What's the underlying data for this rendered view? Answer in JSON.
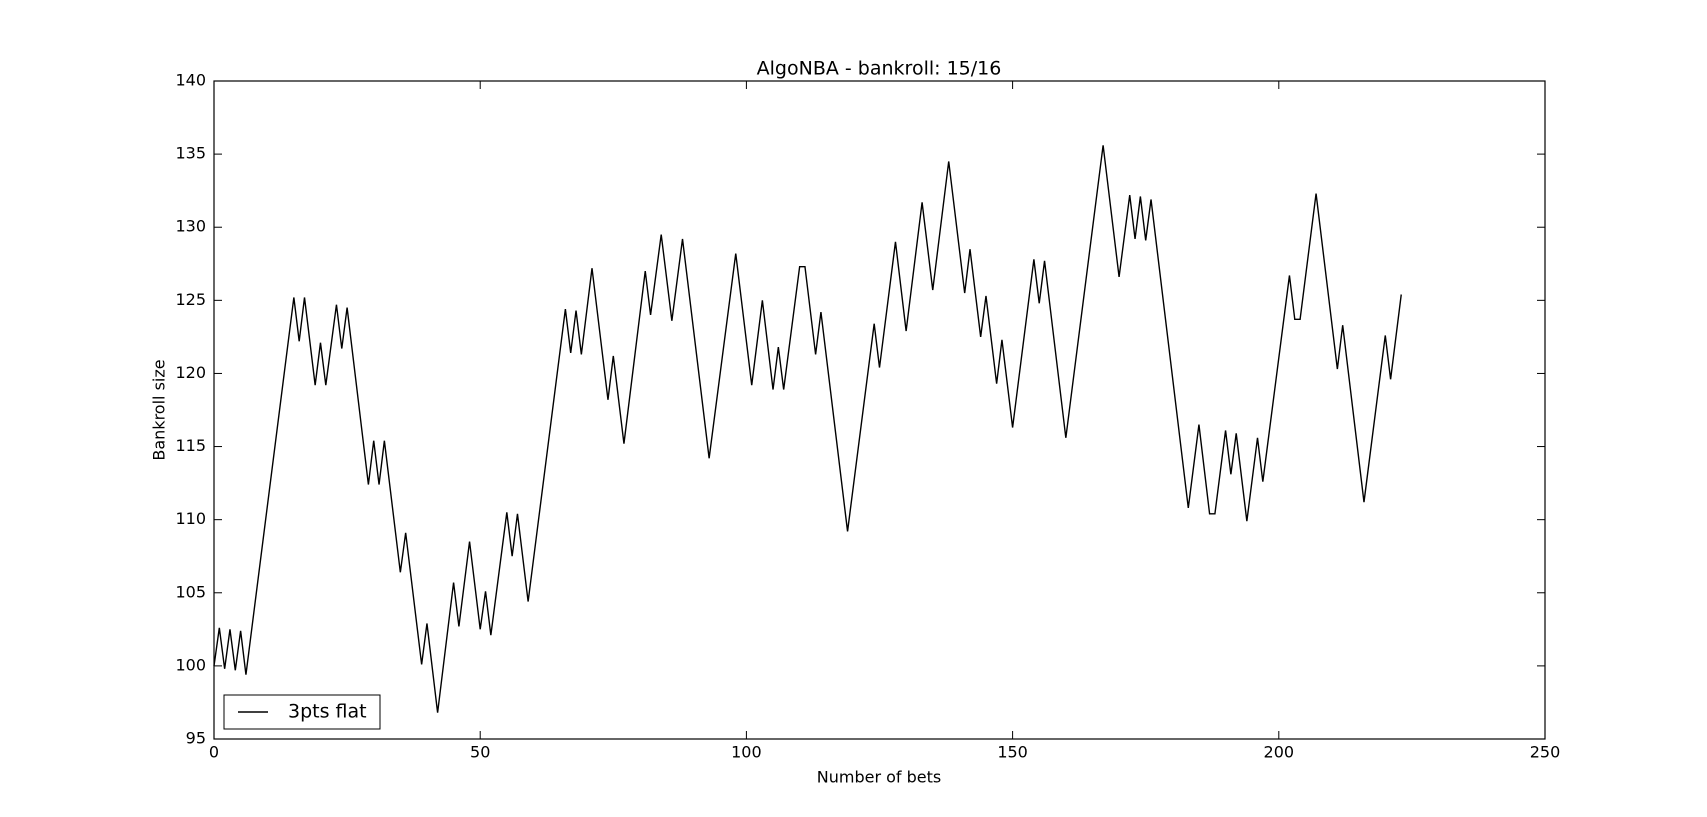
{
  "chart_data": {
    "type": "line",
    "title": "AlgoNBA - bankroll: 15/16",
    "xlabel": "Number of bets",
    "ylabel": "Bankroll size",
    "x": [
      0,
      1,
      2,
      3,
      4,
      5,
      6,
      15,
      16,
      17,
      19,
      20,
      21,
      23,
      24,
      25,
      29,
      30,
      31,
      32,
      35,
      36,
      39,
      40,
      42,
      45,
      46,
      48,
      50,
      51,
      52,
      55,
      56,
      57,
      59,
      66,
      67,
      68,
      69,
      71,
      74,
      75,
      77,
      81,
      82,
      84,
      86,
      88,
      93,
      98,
      101,
      103,
      105,
      106,
      107,
      110,
      111,
      113,
      114,
      119,
      124,
      125,
      128,
      130,
      133,
      135,
      138,
      141,
      142,
      144,
      145,
      147,
      148,
      150,
      154,
      155,
      156,
      160,
      167,
      170,
      172,
      173,
      174,
      175,
      176,
      183,
      185,
      187,
      188,
      190,
      191,
      192,
      194,
      196,
      197,
      202,
      203,
      204,
      207,
      211,
      212,
      216,
      220,
      221,
      223
    ],
    "series": [
      {
        "name": "3pts flat",
        "color": "#000000",
        "values": [
          100,
          102.6,
          99.8,
          102.5,
          99.7,
          102.4,
          99.4,
          125.2,
          122.2,
          125.2,
          119.2,
          122.1,
          119.2,
          124.7,
          121.7,
          124.5,
          112.4,
          115.4,
          112.4,
          115.4,
          106.4,
          109.1,
          100.1,
          102.9,
          96.8,
          105.7,
          102.7,
          108.5,
          102.5,
          105.1,
          102.1,
          110.5,
          107.5,
          110.4,
          104.4,
          124.4,
          121.4,
          124.3,
          121.3,
          127.2,
          118.2,
          121.2,
          115.2,
          127.0,
          124.0,
          129.5,
          123.6,
          129.2,
          114.2,
          128.2,
          119.2,
          125.0,
          118.9,
          121.8,
          118.9,
          127.3,
          127.3,
          121.3,
          124.2,
          109.2,
          123.4,
          120.4,
          129.0,
          122.9,
          131.7,
          125.7,
          134.5,
          125.5,
          128.5,
          122.5,
          125.3,
          119.3,
          122.3,
          116.3,
          127.8,
          124.8,
          127.7,
          115.6,
          135.6,
          126.6,
          132.2,
          129.2,
          132.1,
          129.1,
          131.9,
          110.8,
          116.5,
          110.4,
          110.4,
          116.1,
          113.1,
          115.9,
          109.9,
          115.6,
          112.6,
          126.7,
          123.7,
          123.7,
          132.3,
          120.3,
          123.3,
          111.2,
          122.6,
          119.6,
          125.4
        ]
      }
    ],
    "xlim": [
      0,
      250
    ],
    "xticks": [
      0,
      50,
      100,
      150,
      200,
      250
    ],
    "ylim": [
      95,
      140
    ],
    "yticks": [
      95,
      100,
      105,
      110,
      115,
      120,
      125,
      130,
      135,
      140
    ],
    "grid": false,
    "legend": "lower left"
  }
}
